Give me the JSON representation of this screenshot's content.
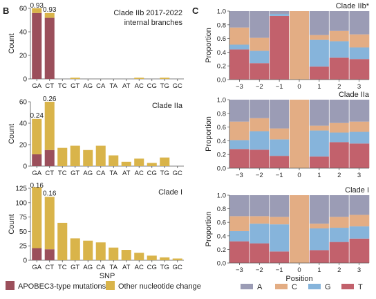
{
  "panels": {
    "b": "B",
    "c": "C"
  },
  "colors": {
    "apobec": "#9b4f5b",
    "other": "#d9b44a",
    "A": "#9b9cb5",
    "C": "#e3ad84",
    "G": "#86b4db",
    "T": "#c2616c"
  },
  "legend_b": {
    "apobec": "APOBEC3-type mutations",
    "other": "Other nucleotide change"
  },
  "legend_c": {
    "A": "A",
    "C": "C",
    "G": "G",
    "T": "T"
  },
  "chart_data": [
    {
      "type": "bar",
      "title": "Clade IIb 2017-2022 internal branches",
      "xlabel": "",
      "ylabel": "Count",
      "ylim": [
        0,
        60
      ],
      "yticks": [
        0,
        20,
        40,
        60
      ],
      "categories": [
        "GA",
        "CT",
        "TC",
        "GT",
        "AG",
        "CA",
        "TA",
        "AT",
        "AC",
        "CG",
        "TG",
        "GC"
      ],
      "series": [
        {
          "name": "APOBEC3-type mutations",
          "values": [
            56,
            52,
            0,
            0,
            0,
            0,
            0,
            0,
            0,
            0,
            0,
            0
          ]
        },
        {
          "name": "Other nucleotide change",
          "values": [
            4,
            4,
            0,
            1,
            0,
            0,
            0,
            0,
            1,
            0,
            1,
            0
          ]
        }
      ],
      "annotations": [
        {
          "category": "GA",
          "text": "0.93"
        },
        {
          "category": "CT",
          "text": "0.93"
        }
      ]
    },
    {
      "type": "bar",
      "title": "Clade IIa",
      "xlabel": "",
      "ylabel": "Count",
      "ylim": [
        0,
        60
      ],
      "yticks": [
        0,
        20,
        40,
        60
      ],
      "categories": [
        "GA",
        "CT",
        "TC",
        "GT",
        "AG",
        "CA",
        "TA",
        "AT",
        "AC",
        "CG",
        "TG",
        "GC"
      ],
      "series": [
        {
          "name": "APOBEC3-type mutations",
          "values": [
            11,
            15,
            0,
            0,
            0,
            0,
            0,
            0,
            0,
            0,
            0,
            0
          ]
        },
        {
          "name": "Other nucleotide change",
          "values": [
            33,
            45,
            17,
            19,
            15,
            19,
            10,
            4,
            7,
            3,
            8,
            0
          ]
        }
      ],
      "annotations": [
        {
          "category": "GA",
          "text": "0.24"
        },
        {
          "category": "CT",
          "text": "0.26"
        }
      ]
    },
    {
      "type": "bar",
      "title": "Clade I",
      "xlabel": "SNP",
      "ylabel": "Count",
      "ylim": [
        0,
        125
      ],
      "yticks": [
        0,
        25,
        50,
        75,
        100,
        125
      ],
      "categories": [
        "GA",
        "CT",
        "TC",
        "GT",
        "AG",
        "CA",
        "TA",
        "AT",
        "AC",
        "CG",
        "TG",
        "GC"
      ],
      "series": [
        {
          "name": "APOBEC3-type mutations",
          "values": [
            21,
            19,
            0,
            0,
            0,
            0,
            0,
            0,
            0,
            0,
            0,
            0
          ]
        },
        {
          "name": "Other nucleotide change",
          "values": [
            106,
            91,
            65,
            38,
            34,
            31,
            22,
            18,
            13,
            8,
            5,
            3
          ]
        }
      ],
      "annotations": [
        {
          "category": "GA",
          "text": "0.16"
        },
        {
          "category": "CT",
          "text": "0.16"
        }
      ]
    },
    {
      "type": "area",
      "title": "Clade IIb*",
      "xlabel": "",
      "ylabel": "Proportion",
      "ylim": [
        0,
        1.0
      ],
      "yticks": [
        0.0,
        0.2,
        0.4,
        0.6,
        0.8,
        1.0
      ],
      "x": [
        -3,
        -2,
        -1,
        0,
        1,
        2,
        3
      ],
      "series": [
        {
          "name": "T",
          "values": [
            0.44,
            0.24,
            0.93,
            0.0,
            0.19,
            0.32,
            0.3
          ]
        },
        {
          "name": "G",
          "values": [
            0.07,
            0.18,
            0.03,
            0.0,
            0.39,
            0.24,
            0.17
          ]
        },
        {
          "name": "C",
          "values": [
            0.25,
            0.19,
            0.0,
            1.0,
            0.07,
            0.15,
            0.19
          ]
        },
        {
          "name": "A",
          "values": [
            0.24,
            0.39,
            0.04,
            0.0,
            0.35,
            0.29,
            0.34
          ]
        }
      ]
    },
    {
      "type": "area",
      "title": "Clade IIa",
      "xlabel": "",
      "ylabel": "Proportion",
      "ylim": [
        0,
        1.0
      ],
      "yticks": [
        0.0,
        0.2,
        0.4,
        0.6,
        0.8,
        1.0
      ],
      "x": [
        -3,
        -2,
        -1,
        0,
        1,
        2,
        3
      ],
      "series": [
        {
          "name": "T",
          "values": [
            0.28,
            0.27,
            0.18,
            0.0,
            0.17,
            0.38,
            0.36
          ]
        },
        {
          "name": "G",
          "values": [
            0.13,
            0.27,
            0.24,
            0.0,
            0.38,
            0.14,
            0.17
          ]
        },
        {
          "name": "C",
          "values": [
            0.27,
            0.19,
            0.16,
            1.0,
            0.07,
            0.14,
            0.15
          ]
        },
        {
          "name": "A",
          "values": [
            0.32,
            0.27,
            0.42,
            0.0,
            0.38,
            0.34,
            0.32
          ]
        }
      ]
    },
    {
      "type": "area",
      "title": "Clade I",
      "xlabel": "Position",
      "ylabel": "Proportion",
      "ylim": [
        0,
        1.0
      ],
      "yticks": [
        0.0,
        0.2,
        0.4,
        0.6,
        0.8,
        1.0
      ],
      "x": [
        -3,
        -2,
        -1,
        0,
        1,
        2,
        3
      ],
      "series": [
        {
          "name": "T",
          "values": [
            0.32,
            0.29,
            0.17,
            0.0,
            0.19,
            0.31,
            0.36
          ]
        },
        {
          "name": "G",
          "values": [
            0.15,
            0.29,
            0.4,
            0.0,
            0.32,
            0.21,
            0.18
          ]
        },
        {
          "name": "C",
          "values": [
            0.22,
            0.11,
            0.11,
            1.0,
            0.07,
            0.16,
            0.17
          ]
        },
        {
          "name": "A",
          "values": [
            0.31,
            0.31,
            0.32,
            0.0,
            0.42,
            0.32,
            0.29
          ]
        }
      ]
    }
  ]
}
